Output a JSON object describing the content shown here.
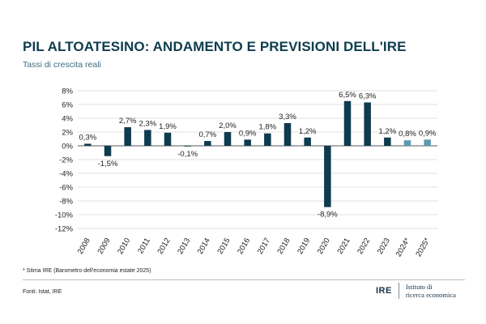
{
  "header": {
    "title": "PIL ALTOATESINO: ANDAMENTO E PREVISIONI DELL'IRE",
    "subtitle": "Tassi di crescita reali"
  },
  "footer": {
    "footnote": "* Stima IRE (Barometro dell'economia estate 2025)",
    "source": "Fonti: Istat, IRE",
    "logo_mark": "IRE",
    "logo_line1": "Istituto di",
    "logo_line2": "ricerca economica"
  },
  "colors": {
    "actual": "#0f3b4e",
    "forecast": "#5b9ab0",
    "grid": "#d9d9d9",
    "axis": "#595959"
  },
  "chart_data": {
    "type": "bar",
    "title": "PIL ALTOATESINO: ANDAMENTO E PREVISIONI DELL'IRE",
    "subtitle": "Tassi di crescita reali",
    "xlabel": "",
    "ylabel": "",
    "ylim": [
      -12,
      8
    ],
    "ytick_step": 2,
    "ytick_labels": [
      "8%",
      "6%",
      "4%",
      "2%",
      "0%",
      "-2%",
      "-4%",
      "-6%",
      "-8%",
      "-10%",
      "-12%"
    ],
    "grid": true,
    "categories": [
      "2008",
      "2009",
      "2010",
      "2011",
      "2012",
      "2013",
      "2014",
      "2015",
      "2016",
      "2017",
      "2018",
      "2019",
      "2020",
      "2021",
      "2022",
      "2023",
      "2024*",
      "2025*"
    ],
    "values": [
      0.3,
      -1.5,
      2.7,
      2.3,
      1.9,
      -0.1,
      0.7,
      2.0,
      0.9,
      1.8,
      3.3,
      1.2,
      -8.9,
      6.5,
      6.3,
      1.2,
      0.8,
      0.9
    ],
    "value_labels": [
      "0,3%",
      "-1,5%",
      "2,7%",
      "2,3%",
      "1,9%",
      "-0,1%",
      "0,7%",
      "2,0%",
      "0,9%",
      "1,8%",
      "3,3%",
      "1,2%",
      "-8,9%",
      "6,5%",
      "6,3%",
      "1,2%",
      "0,8%",
      "0,9%"
    ],
    "forecast": [
      false,
      false,
      false,
      false,
      false,
      false,
      false,
      false,
      false,
      false,
      false,
      false,
      false,
      false,
      false,
      false,
      true,
      true
    ]
  }
}
